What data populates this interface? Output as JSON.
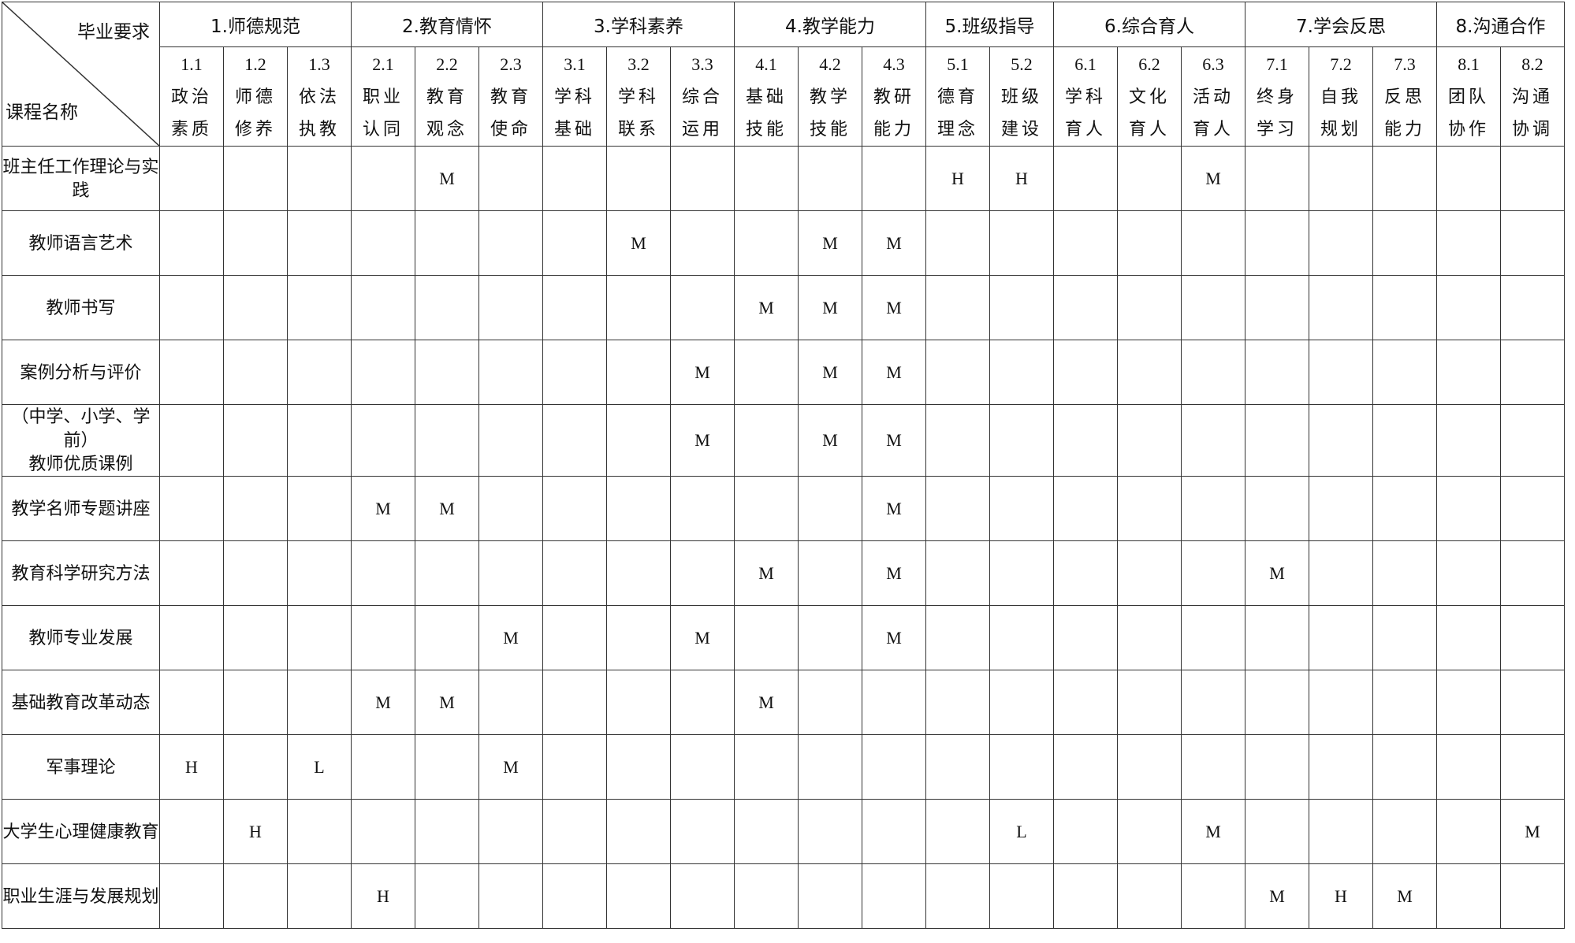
{
  "header": {
    "requirements_label": "毕业要求",
    "course_label": "课程名称",
    "groups": [
      {
        "title": "1.师德规范",
        "items": [
          {
            "code": "1.1",
            "name": "政治素质"
          },
          {
            "code": "1.2",
            "name": "师德修养"
          },
          {
            "code": "1.3",
            "name": "依法执教"
          }
        ]
      },
      {
        "title": "2.教育情怀",
        "items": [
          {
            "code": "2.1",
            "name": "职业认同"
          },
          {
            "code": "2.2",
            "name": "教育观念"
          },
          {
            "code": "2.3",
            "name": "教育使命"
          }
        ]
      },
      {
        "title": "3.学科素养",
        "items": [
          {
            "code": "3.1",
            "name": "学科基础"
          },
          {
            "code": "3.2",
            "name": "学科联系"
          },
          {
            "code": "3.3",
            "name": "综合运用"
          }
        ]
      },
      {
        "title": "4.教学能力",
        "items": [
          {
            "code": "4.1",
            "name": "基础技能"
          },
          {
            "code": "4.2",
            "name": "教学技能"
          },
          {
            "code": "4.3",
            "name": "教研能力"
          }
        ]
      },
      {
        "title": "5.班级指导",
        "items": [
          {
            "code": "5.1",
            "name": "德育理念"
          },
          {
            "code": "5.2",
            "name": "班级建设"
          }
        ]
      },
      {
        "title": "6.综合育人",
        "items": [
          {
            "code": "6.1",
            "name": "学科育人"
          },
          {
            "code": "6.2",
            "name": "文化育人"
          },
          {
            "code": "6.3",
            "name": "活动育人"
          }
        ]
      },
      {
        "title": "7.学会反思",
        "items": [
          {
            "code": "7.1",
            "name": "终身学习"
          },
          {
            "code": "7.2",
            "name": "自我规划"
          },
          {
            "code": "7.3",
            "name": "反思能力"
          }
        ]
      },
      {
        "title": "8.沟通合作",
        "items": [
          {
            "code": "8.1",
            "name": "团队协作"
          },
          {
            "code": "8.2",
            "name": "沟通协调"
          }
        ]
      }
    ]
  },
  "table": {
    "rows": [
      {
        "course": "班主任工作理论与实践",
        "cells": [
          null,
          null,
          null,
          null,
          "M",
          null,
          null,
          null,
          null,
          null,
          null,
          null,
          "H",
          "H",
          null,
          null,
          "M",
          null,
          null,
          null,
          null,
          null
        ]
      },
      {
        "course": "教师语言艺术",
        "cells": [
          null,
          null,
          null,
          null,
          null,
          null,
          null,
          "M",
          null,
          null,
          "M",
          "M",
          null,
          null,
          null,
          null,
          null,
          null,
          null,
          null,
          null,
          null
        ]
      },
      {
        "course": "教师书写",
        "cells": [
          null,
          null,
          null,
          null,
          null,
          null,
          null,
          null,
          null,
          "M",
          "M",
          "M",
          null,
          null,
          null,
          null,
          null,
          null,
          null,
          null,
          null,
          null
        ]
      },
      {
        "course": "案例分析与评价",
        "cells": [
          null,
          null,
          null,
          null,
          null,
          null,
          null,
          null,
          "M",
          null,
          "M",
          "M",
          null,
          null,
          null,
          null,
          null,
          null,
          null,
          null,
          null,
          null
        ]
      },
      {
        "course": "（中学、小学、学前）\n教师优质课例",
        "cells": [
          null,
          null,
          null,
          null,
          null,
          null,
          null,
          null,
          "M",
          null,
          "M",
          "M",
          null,
          null,
          null,
          null,
          null,
          null,
          null,
          null,
          null,
          null
        ]
      },
      {
        "course": "教学名师专题讲座",
        "cells": [
          null,
          null,
          null,
          "M",
          "M",
          null,
          null,
          null,
          null,
          null,
          null,
          "M",
          null,
          null,
          null,
          null,
          null,
          null,
          null,
          null,
          null,
          null
        ]
      },
      {
        "course": "教育科学研究方法",
        "cells": [
          null,
          null,
          null,
          null,
          null,
          null,
          null,
          null,
          null,
          "M",
          null,
          "M",
          null,
          null,
          null,
          null,
          null,
          "M",
          null,
          null,
          null,
          null
        ]
      },
      {
        "course": "教师专业发展",
        "cells": [
          null,
          null,
          null,
          null,
          null,
          "M",
          null,
          null,
          "M",
          null,
          null,
          "M",
          null,
          null,
          null,
          null,
          null,
          null,
          null,
          null,
          null,
          null
        ]
      },
      {
        "course": "基础教育改革动态",
        "cells": [
          null,
          null,
          null,
          "M",
          "M",
          null,
          null,
          null,
          null,
          "M",
          null,
          null,
          null,
          null,
          null,
          null,
          null,
          null,
          null,
          null,
          null,
          null
        ]
      },
      {
        "course": "军事理论",
        "cells": [
          "H",
          null,
          "L",
          null,
          null,
          "M",
          null,
          null,
          null,
          null,
          null,
          null,
          null,
          null,
          null,
          null,
          null,
          null,
          null,
          null,
          null,
          null
        ]
      },
      {
        "course": "大学生心理健康教育",
        "cells": [
          null,
          "H",
          null,
          null,
          null,
          null,
          null,
          null,
          null,
          null,
          null,
          null,
          null,
          "L",
          null,
          null,
          "M",
          null,
          null,
          null,
          null,
          "M"
        ]
      },
      {
        "course": "职业生涯与发展规划",
        "cells": [
          null,
          null,
          null,
          "H",
          null,
          null,
          null,
          null,
          null,
          null,
          null,
          null,
          null,
          null,
          null,
          null,
          null,
          "M",
          "H",
          "M",
          null,
          null
        ]
      }
    ]
  }
}
